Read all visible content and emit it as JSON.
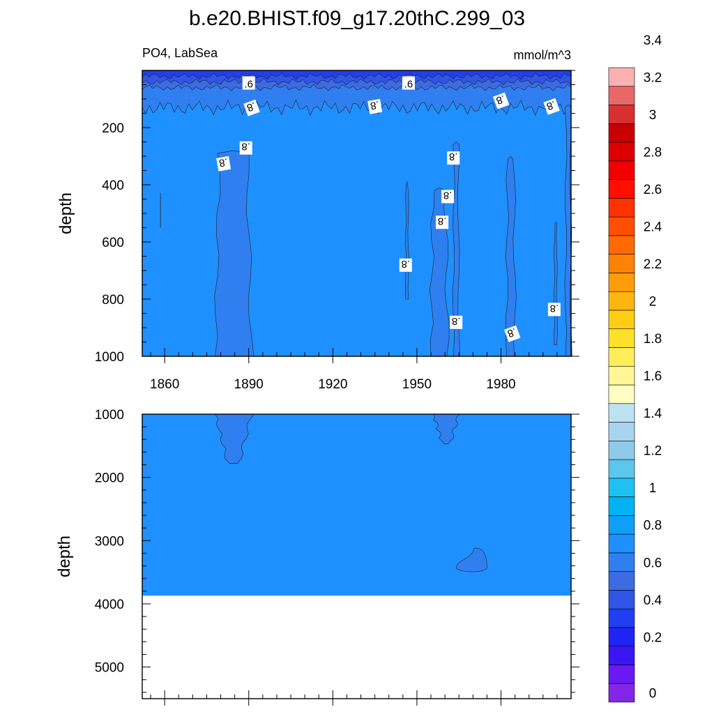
{
  "chart_data": [
    {
      "type": "heatmap",
      "panel": "upper",
      "title": "b.e20.BHIST.f09_g17.20thC.299_03",
      "left_subtitle": "PO4, LabSea",
      "right_subtitle": "mmol/m^3",
      "xlabel": "",
      "ylabel": "depth",
      "xlim": [
        1852,
        2005
      ],
      "ylim": [
        0,
        1000
      ],
      "y_reversed": true,
      "x_ticks": [
        "1860",
        "1890",
        "1920",
        "1950",
        "1980"
      ],
      "y_ticks": [
        "200",
        "400",
        "600",
        "800",
        "1000"
      ],
      "contour_labels": [
        ".6",
        ".6",
        ".8",
        ".8",
        ".8",
        ".8",
        ".8",
        ".8",
        ".8",
        ".8",
        ".8",
        ".8",
        ".8",
        ".8",
        ".8"
      ],
      "background_band": "0.8-0.9",
      "surface_layers": [
        {
          "range": "0.4-0.5",
          "depth_from": 0,
          "depth_to": 20
        },
        {
          "range": "0.5-0.6",
          "depth_from": 20,
          "depth_to": 40
        },
        {
          "range": "0.6-0.7",
          "depth_from": 40,
          "depth_to": 60
        },
        {
          "range": "0.7-0.8",
          "depth_from": 60,
          "depth_to": 130
        }
      ],
      "low_patches": [
        {
          "range": "0.7-0.8",
          "x_from": 1878,
          "x_to": 1891,
          "depth_from": 290,
          "depth_to": 1000
        },
        {
          "range": "0.7-0.8",
          "x_from": 1946,
          "x_to": 1947,
          "depth_from": 400,
          "depth_to": 800
        },
        {
          "range": "0.7-0.8",
          "x_from": 1955,
          "x_to": 1961,
          "depth_from": 420,
          "depth_to": 1000
        },
        {
          "range": "0.7-0.8",
          "x_from": 1963,
          "x_to": 1965,
          "depth_from": 260,
          "depth_to": 1000
        },
        {
          "range": "0.7-0.8",
          "x_from": 1982,
          "x_to": 1985,
          "depth_from": 310,
          "depth_to": 1000
        },
        {
          "range": "0.7-0.8",
          "x_from": 1999,
          "x_to": 2000,
          "depth_from": 540,
          "depth_to": 960
        },
        {
          "range": "0.7-0.8",
          "x_from": 2003,
          "x_to": 2005,
          "depth_from": 130,
          "depth_to": 1000
        }
      ]
    },
    {
      "type": "heatmap",
      "panel": "lower",
      "xlabel": "",
      "ylabel": "depth",
      "xlim": [
        1852,
        2005
      ],
      "ylim": [
        1000,
        5500
      ],
      "y_reversed": true,
      "y_ticks": [
        "1000",
        "2000",
        "3000",
        "4000",
        "5000"
      ],
      "background_band": "0.8-0.9",
      "no_data_below_depth": 3870,
      "low_patches": [
        {
          "range": "0.7-0.8",
          "x_from": 1878,
          "x_to": 1891,
          "depth_from": 1000,
          "depth_to": 1780
        },
        {
          "range": "0.7-0.8",
          "x_from": 1956,
          "x_to": 1965,
          "depth_from": 1000,
          "depth_to": 1470
        },
        {
          "range": "0.7-0.8",
          "x_from": 1964,
          "x_to": 1975,
          "depth_from": 3120,
          "depth_to": 3480
        }
      ]
    }
  ],
  "colorbar": {
    "labels": [
      "3.4",
      "3.2",
      "3",
      "2.8",
      "2.6",
      "2.4",
      "2.2",
      "2",
      "1.8",
      "1.6",
      "1.4",
      "1.2",
      "1",
      "0.8",
      "0.6",
      "0.4",
      "0.2",
      "0"
    ],
    "colors_bottom_to_top": [
      "#8425e8",
      "#6a19f1",
      "#3a16f5",
      "#1f24f6",
      "#1f3ff0",
      "#2f55e6",
      "#3c6be2",
      "#2f7ff0",
      "#1e90ff",
      "#0ea0f6",
      "#00b2f2",
      "#1fc0f3",
      "#5cc7ee",
      "#8fcbe8",
      "#a8d4ee",
      "#bde3f2",
      "#fffdc3",
      "#fff797",
      "#ffee5a",
      "#ffe02a",
      "#ffcd14",
      "#ffb510",
      "#ff9c0a",
      "#ff8206",
      "#ff6a03",
      "#ff4f03",
      "#ff3300",
      "#ff0f00",
      "#f20000",
      "#dc0000",
      "#c80000",
      "#d83030",
      "#e86868",
      "#f8b0b0"
    ]
  }
}
